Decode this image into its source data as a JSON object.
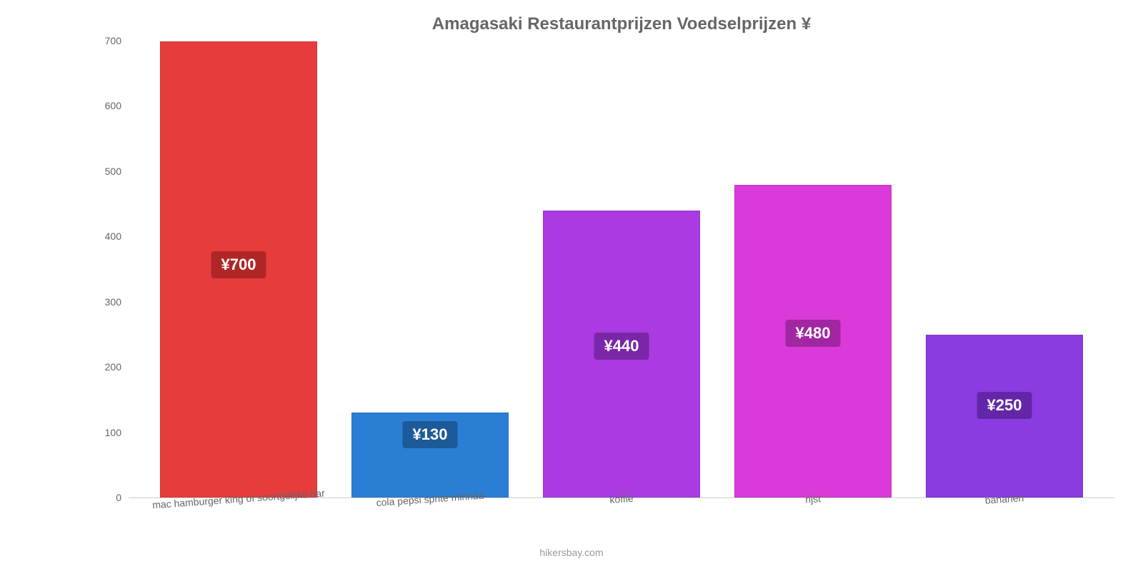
{
  "chart": {
    "type": "bar",
    "title": "Amagasaki Restaurantprijzen Voedselprijzen ¥",
    "title_color": "#666666",
    "title_fontsize": 24,
    "background_color": "#ffffff",
    "ylim": [
      0,
      700
    ],
    "yticks": [
      0,
      100,
      200,
      300,
      400,
      500,
      600,
      700
    ],
    "axis_color": "#666666",
    "axis_fontsize": 14,
    "bar_width_pct": 82,
    "categories": [
      "mac hamburger king of soortgelijke bar",
      "cola pepsi sprite mirinda",
      "koffie",
      "rijst",
      "bananen"
    ],
    "values": [
      700,
      130,
      440,
      480,
      250
    ],
    "value_labels": [
      "¥700",
      "¥130",
      "¥440",
      "¥480",
      "¥250"
    ],
    "bar_colors": [
      "#e73c3c",
      "#2a7fd4",
      "#a93be0",
      "#d93ad9",
      "#8a3ce0"
    ],
    "label_bg_colors": [
      "#b02626",
      "#1d5a99",
      "#7a26a8",
      "#a126a1",
      "#6326a8"
    ],
    "label_text_color": "#ffffff",
    "label_fontsize": 22,
    "footer": "hikersbay.com",
    "footer_color": "#999999"
  }
}
